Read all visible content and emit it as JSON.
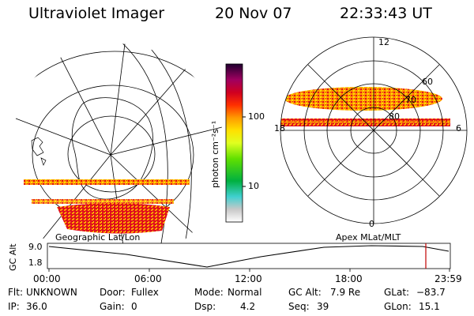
{
  "header": {
    "instrument": "Ultraviolet Imager",
    "date": "20 Nov 07",
    "time": "22:33:43 UT"
  },
  "colorbar": {
    "unit_label": "photon cm⁻²s⁻¹",
    "ticks": [
      "100",
      "10"
    ]
  },
  "polar_plot": {
    "mlt_labels": [
      "12",
      "18",
      "6",
      "0"
    ],
    "mlat_labels": [
      "60",
      "70",
      "80"
    ]
  },
  "map_labels": {
    "left": "Geographic Lat/Lon",
    "right": "Apex MLat/MLT"
  },
  "timeline": {
    "ylabel": "GC Alt",
    "y_ticks": [
      "9.0",
      "1.8"
    ],
    "x_ticks": [
      "00:00",
      "06:00",
      "12:00",
      "18:00",
      "23:59"
    ],
    "marker_time": "22:33"
  },
  "footer": {
    "row1": [
      {
        "label": "Flt:",
        "value": "UNKNOWN"
      },
      {
        "label": "Door:",
        "value": "Fullex"
      },
      {
        "label": "Mode:",
        "value": "Normal"
      },
      {
        "label": "GC Alt:",
        "value": "7.9 Re"
      },
      {
        "label": "GLat:",
        "value": "−83.7"
      }
    ],
    "row2": [
      {
        "label": "IP:",
        "value": "36.0"
      },
      {
        "label": "Gain:",
        "value": "0"
      },
      {
        "label": "Dsp:",
        "value": "4.2"
      },
      {
        "label": "Seq:",
        "value": "39"
      },
      {
        "label": "GLon:",
        "value": "15.1"
      }
    ]
  },
  "colors": {
    "aurora_red": "#e0101c",
    "aurora_orange": "#ff9a00",
    "aurora_yellow": "#ffe000",
    "marker": "#c00000"
  }
}
